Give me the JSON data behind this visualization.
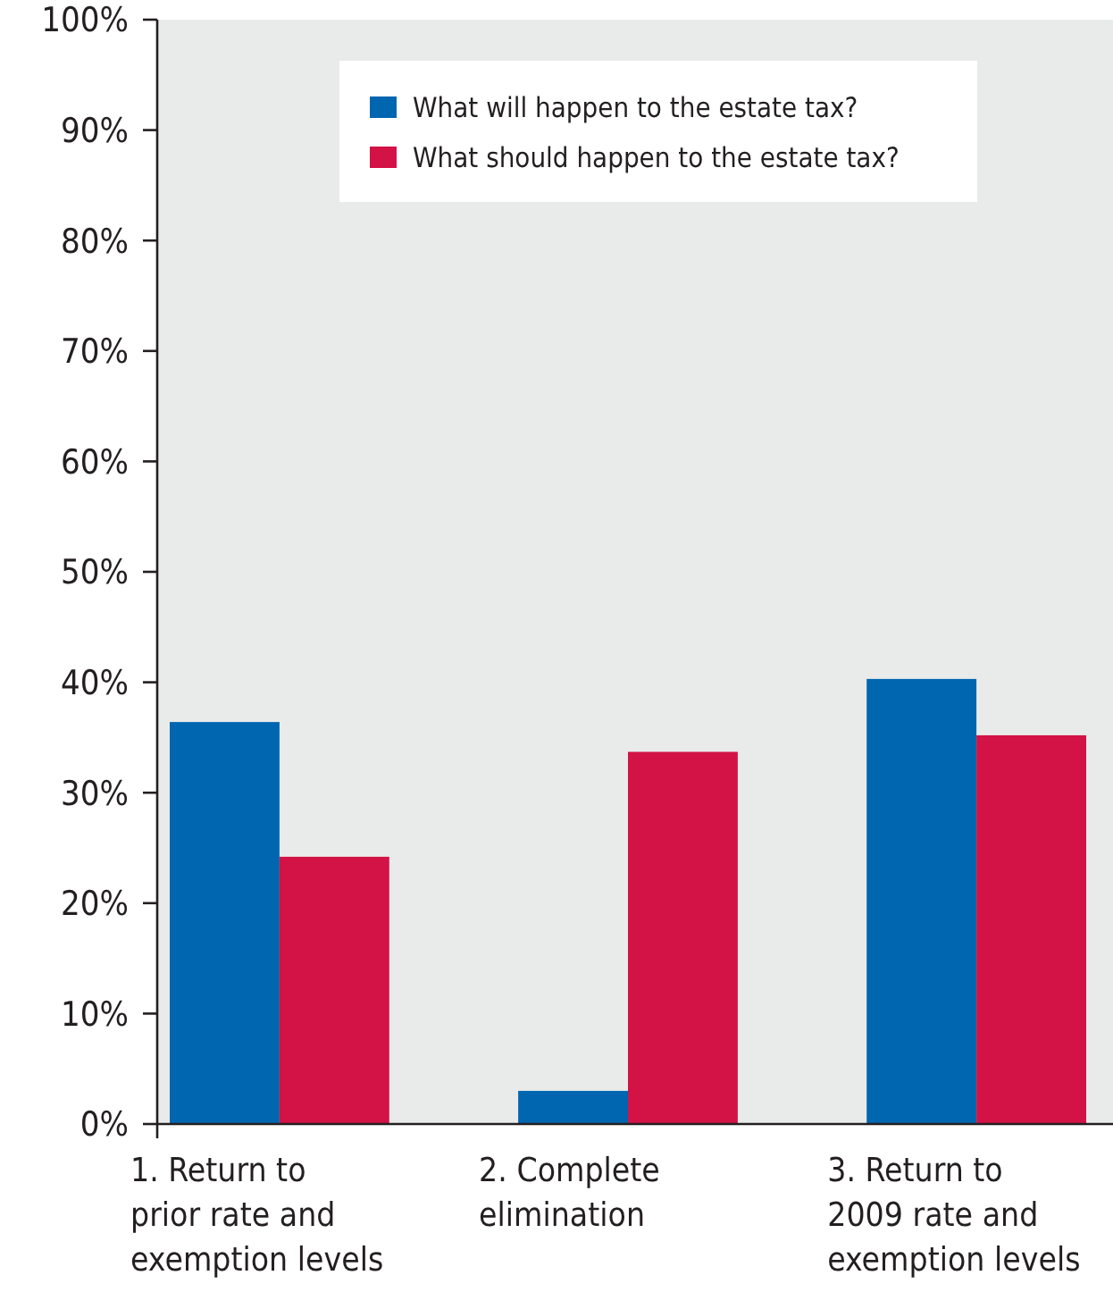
{
  "chart_data": {
    "type": "bar",
    "categories": [
      "1. Return to prior rate and exemption levels",
      "2. Complete elimination",
      "3. Return to 2009 rate and exemption levels"
    ],
    "series": [
      {
        "name": "What will happen to the estate tax?",
        "color": "#0066b0",
        "values": [
          36.4,
          3.0,
          40.3
        ]
      },
      {
        "name": "What should happen to the estate tax?",
        "color": "#d31245",
        "values": [
          24.2,
          33.7,
          35.2
        ]
      }
    ],
    "ylim": [
      0,
      100
    ],
    "yticks": [
      {
        "value": 0,
        "label": "0%"
      },
      {
        "value": 10,
        "label": "10%"
      },
      {
        "value": 20,
        "label": "20%"
      },
      {
        "value": 30,
        "label": "30%"
      },
      {
        "value": 40,
        "label": "40%"
      },
      {
        "value": 50,
        "label": "50%"
      },
      {
        "value": 60,
        "label": "60%"
      },
      {
        "value": 70,
        "label": "70%"
      },
      {
        "value": 80,
        "label": "80%"
      },
      {
        "value": 90,
        "label": "90%"
      },
      {
        "value": 100,
        "label": "100%"
      }
    ],
    "grid": false,
    "legend": "top"
  }
}
